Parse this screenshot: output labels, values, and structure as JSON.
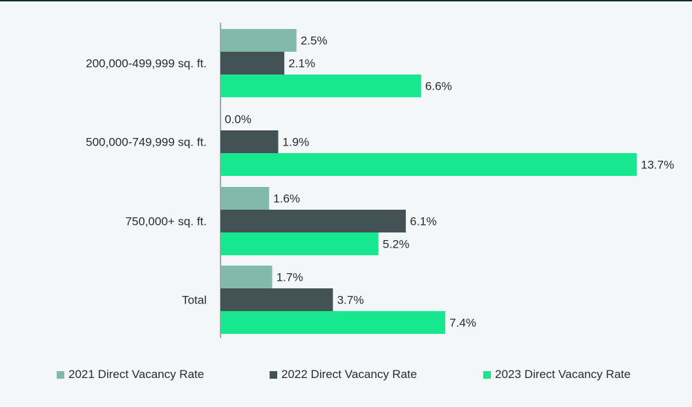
{
  "chart_data": {
    "type": "bar",
    "orientation": "horizontal",
    "categories": [
      "200,000-499,999 sq. ft.",
      "500,000-749,999 sq. ft.",
      "750,000+ sq. ft.",
      "Total"
    ],
    "series": [
      {
        "name": "2021 Direct Vacancy Rate",
        "color": "#82b9a9",
        "values": [
          2.5,
          0.0,
          1.6,
          1.7
        ],
        "labels": [
          "2.5%",
          "0.0%",
          "1.6%",
          "1.7%"
        ]
      },
      {
        "name": "2022 Direct Vacancy Rate",
        "color": "#435254",
        "values": [
          2.1,
          1.9,
          6.1,
          3.7
        ],
        "labels": [
          "2.1%",
          "1.9%",
          "6.1%",
          "3.7%"
        ]
      },
      {
        "name": "2023 Direct Vacancy Rate",
        "color": "#17e88f",
        "values": [
          6.6,
          13.7,
          5.2,
          7.4
        ],
        "labels": [
          "6.6%",
          "13.7%",
          "5.2%",
          "7.4%"
        ]
      }
    ],
    "unit": "%",
    "xlim": [
      0,
      13.7
    ],
    "legend_position": "bottom"
  }
}
